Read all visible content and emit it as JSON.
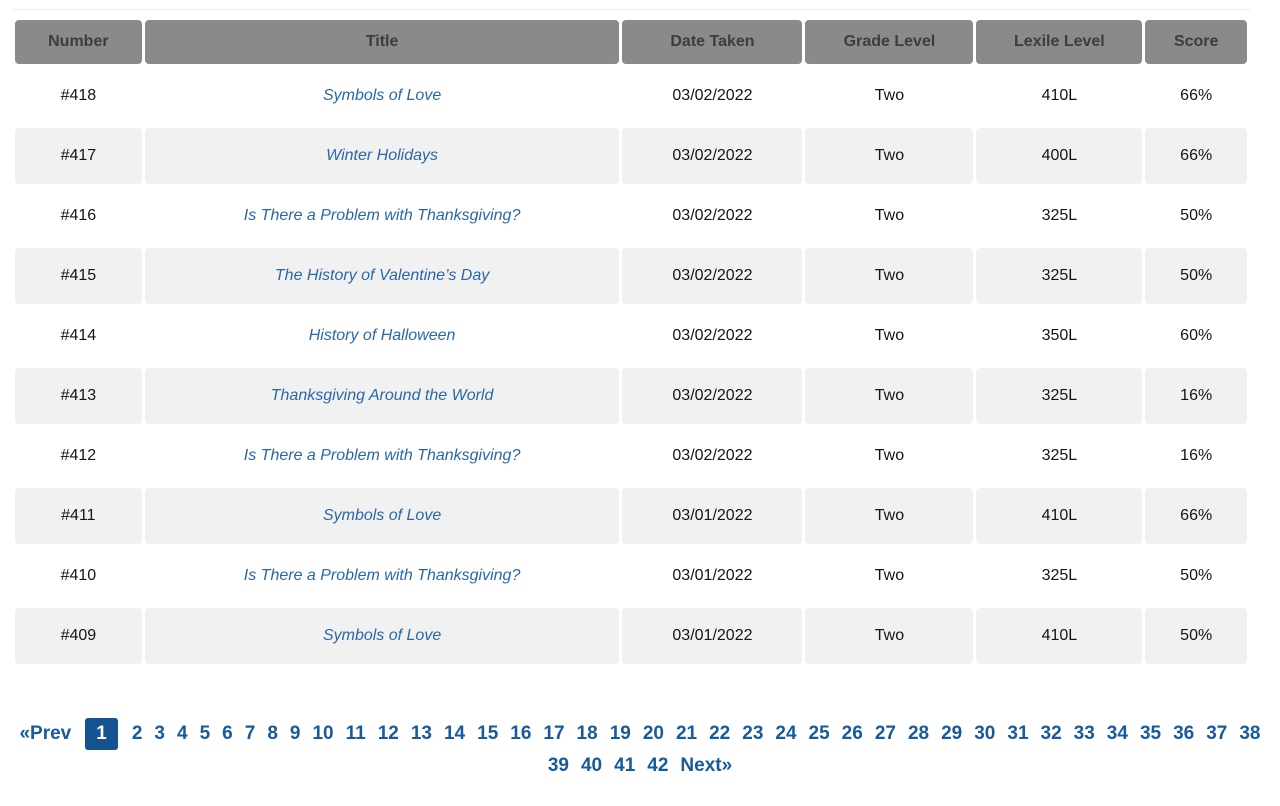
{
  "table": {
    "columns": [
      {
        "key": "number",
        "label": "Number"
      },
      {
        "key": "title",
        "label": "Title"
      },
      {
        "key": "date_taken",
        "label": "Date Taken"
      },
      {
        "key": "grade_level",
        "label": "Grade Level"
      },
      {
        "key": "lexile_level",
        "label": "Lexile Level"
      },
      {
        "key": "score",
        "label": "Score"
      }
    ],
    "rows": [
      {
        "number": "#418",
        "title": "Symbols of Love",
        "date_taken": "03/02/2022",
        "grade_level": "Two",
        "lexile_level": "410L",
        "score": "66%"
      },
      {
        "number": "#417",
        "title": "Winter Holidays",
        "date_taken": "03/02/2022",
        "grade_level": "Two",
        "lexile_level": "400L",
        "score": "66%"
      },
      {
        "number": "#416",
        "title": "Is There a Problem with Thanksgiving?",
        "date_taken": "03/02/2022",
        "grade_level": "Two",
        "lexile_level": "325L",
        "score": "50%"
      },
      {
        "number": "#415",
        "title": "The History of Valentine’s Day",
        "date_taken": "03/02/2022",
        "grade_level": "Two",
        "lexile_level": "325L",
        "score": "50%"
      },
      {
        "number": "#414",
        "title": "History of Halloween",
        "date_taken": "03/02/2022",
        "grade_level": "Two",
        "lexile_level": "350L",
        "score": "60%"
      },
      {
        "number": "#413",
        "title": "Thanksgiving Around the World",
        "date_taken": "03/02/2022",
        "grade_level": "Two",
        "lexile_level": "325L",
        "score": "16%"
      },
      {
        "number": "#412",
        "title": "Is There a Problem with Thanksgiving?",
        "date_taken": "03/02/2022",
        "grade_level": "Two",
        "lexile_level": "325L",
        "score": "16%"
      },
      {
        "number": "#411",
        "title": "Symbols of Love",
        "date_taken": "03/01/2022",
        "grade_level": "Two",
        "lexile_level": "410L",
        "score": "66%"
      },
      {
        "number": "#410",
        "title": "Is There a Problem with Thanksgiving?",
        "date_taken": "03/01/2022",
        "grade_level": "Two",
        "lexile_level": "325L",
        "score": "50%"
      },
      {
        "number": "#409",
        "title": "Symbols of Love",
        "date_taken": "03/01/2022",
        "grade_level": "Two",
        "lexile_level": "410L",
        "score": "50%"
      }
    ]
  },
  "pagination": {
    "prev_label": "«Prev",
    "next_label": "Next»",
    "pages": [
      "1",
      "2",
      "3",
      "4",
      "5",
      "6",
      "7",
      "8",
      "9",
      "10",
      "11",
      "12",
      "13",
      "14",
      "15",
      "16",
      "17",
      "18",
      "19",
      "20",
      "21",
      "22",
      "23",
      "24",
      "25",
      "26",
      "27",
      "28",
      "29",
      "30",
      "31",
      "32",
      "33",
      "34",
      "35",
      "36",
      "37",
      "38",
      "39",
      "40",
      "41",
      "42"
    ],
    "active_page": "1"
  },
  "colors": {
    "header_bg": "#8a8a8a",
    "header_text": "#3d3d3d",
    "stripe_bg": "#f1f1f1",
    "body_text": "#141414",
    "title_link": "#2a67a9",
    "pagination_link": "#175a9d",
    "pagination_active_bg": "#14538f",
    "pagination_active_text": "#ffffff"
  }
}
